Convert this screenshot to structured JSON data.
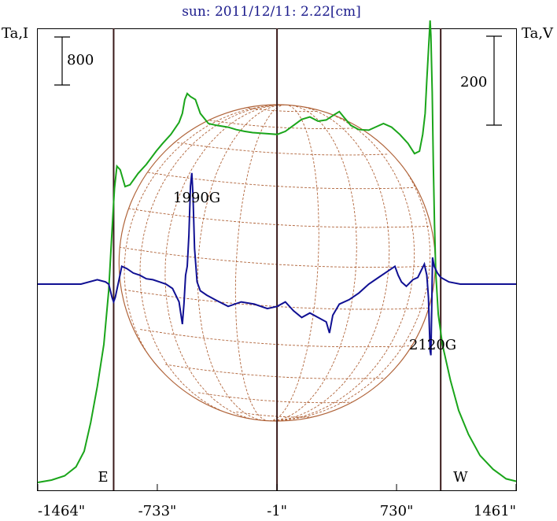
{
  "chart_data": {
    "type": "line",
    "title": "sun: 2011/12/11: 2.22[cm]",
    "ylabel_left": "Ta,I",
    "ylabel_right": "Ta,V",
    "xlim": [
      -1464,
      1461
    ],
    "x_ticks": [
      -1464,
      -733,
      -1,
      730,
      1461
    ],
    "x_tick_labels": [
      "-1464\"",
      "-733\"",
      "-1\"",
      "730\"",
      "1461\""
    ],
    "vertical_lines": [
      {
        "name": "east-limb",
        "x": -1000,
        "label": "E"
      },
      {
        "name": "center",
        "x": -1,
        "label": ""
      },
      {
        "name": "west-limb",
        "x": 1000,
        "label": "W"
      }
    ],
    "scale_left": {
      "label": "800",
      "value": 800
    },
    "scale_right": {
      "label": "200",
      "value": 200
    },
    "solar_disk": {
      "radius_arcsec": 975,
      "grid": "heliographic lat/lon"
    },
    "annotations": [
      {
        "text": "1990G",
        "x": -490
      },
      {
        "text": "2120G",
        "x": 985
      }
    ],
    "series": [
      {
        "name": "Stokes I",
        "color": "#1aa51a",
        "axis": "left",
        "points": [
          [
            -1464,
            0
          ],
          [
            -1380,
            40
          ],
          [
            -1300,
            110
          ],
          [
            -1230,
            260
          ],
          [
            -1180,
            520
          ],
          [
            -1140,
            1000
          ],
          [
            -1100,
            1600
          ],
          [
            -1060,
            2300
          ],
          [
            -1030,
            3200
          ],
          [
            -1010,
            4200
          ],
          [
            -995,
            4900
          ],
          [
            -980,
            5270
          ],
          [
            -960,
            5210
          ],
          [
            -930,
            4930
          ],
          [
            -900,
            4960
          ],
          [
            -850,
            5150
          ],
          [
            -800,
            5300
          ],
          [
            -740,
            5520
          ],
          [
            -700,
            5650
          ],
          [
            -650,
            5800
          ],
          [
            -600,
            6000
          ],
          [
            -580,
            6150
          ],
          [
            -565,
            6380
          ],
          [
            -550,
            6480
          ],
          [
            -530,
            6430
          ],
          [
            -500,
            6380
          ],
          [
            -470,
            6150
          ],
          [
            -420,
            5980
          ],
          [
            -370,
            5950
          ],
          [
            -300,
            5920
          ],
          [
            -250,
            5880
          ],
          [
            -200,
            5850
          ],
          [
            -150,
            5830
          ],
          [
            -100,
            5820
          ],
          [
            -50,
            5810
          ],
          [
            0,
            5800
          ],
          [
            50,
            5850
          ],
          [
            100,
            5950
          ],
          [
            150,
            6050
          ],
          [
            200,
            6090
          ],
          [
            250,
            6020
          ],
          [
            300,
            6040
          ],
          [
            350,
            6130
          ],
          [
            380,
            6180
          ],
          [
            410,
            6080
          ],
          [
            450,
            5950
          ],
          [
            500,
            5880
          ],
          [
            560,
            5870
          ],
          [
            600,
            5920
          ],
          [
            650,
            5980
          ],
          [
            700,
            5920
          ],
          [
            750,
            5800
          ],
          [
            800,
            5650
          ],
          [
            840,
            5480
          ],
          [
            870,
            5520
          ],
          [
            890,
            5800
          ],
          [
            905,
            6150
          ],
          [
            915,
            6700
          ],
          [
            925,
            7200
          ],
          [
            935,
            7700
          ],
          [
            940,
            7450
          ],
          [
            948,
            6500
          ],
          [
            955,
            5300
          ],
          [
            962,
            4300
          ],
          [
            970,
            3500
          ],
          [
            985,
            2800
          ],
          [
            1010,
            2300
          ],
          [
            1060,
            1700
          ],
          [
            1110,
            1200
          ],
          [
            1170,
            800
          ],
          [
            1240,
            450
          ],
          [
            1320,
            220
          ],
          [
            1400,
            60
          ],
          [
            1461,
            20
          ]
        ]
      },
      {
        "name": "Stokes V",
        "color": "#101093",
        "axis": "right",
        "points": [
          [
            -1464,
            0
          ],
          [
            -1400,
            0
          ],
          [
            -1300,
            0
          ],
          [
            -1200,
            0
          ],
          [
            -1100,
            10
          ],
          [
            -1050,
            5
          ],
          [
            -1030,
            0
          ],
          [
            -1010,
            -30
          ],
          [
            -1000,
            -40
          ],
          [
            -990,
            -30
          ],
          [
            -970,
            5
          ],
          [
            -950,
            40
          ],
          [
            -920,
            35
          ],
          [
            -880,
            25
          ],
          [
            -840,
            20
          ],
          [
            -800,
            12
          ],
          [
            -760,
            10
          ],
          [
            -720,
            5
          ],
          [
            -680,
            0
          ],
          [
            -640,
            -10
          ],
          [
            -600,
            -40
          ],
          [
            -590,
            -65
          ],
          [
            -580,
            -90
          ],
          [
            -570,
            -45
          ],
          [
            -560,
            20
          ],
          [
            -550,
            40
          ],
          [
            -540,
            110
          ],
          [
            -530,
            220
          ],
          [
            -522,
            250
          ],
          [
            -515,
            200
          ],
          [
            -505,
            80
          ],
          [
            -490,
            5
          ],
          [
            -470,
            -15
          ],
          [
            -430,
            -25
          ],
          [
            -380,
            -35
          ],
          [
            -300,
            -50
          ],
          [
            -220,
            -40
          ],
          [
            -140,
            -45
          ],
          [
            -60,
            -55
          ],
          [
            0,
            -50
          ],
          [
            50,
            -40
          ],
          [
            100,
            -60
          ],
          [
            150,
            -75
          ],
          [
            200,
            -65
          ],
          [
            250,
            -75
          ],
          [
            300,
            -85
          ],
          [
            320,
            -110
          ],
          [
            340,
            -70
          ],
          [
            380,
            -45
          ],
          [
            440,
            -35
          ],
          [
            500,
            -20
          ],
          [
            560,
            0
          ],
          [
            620,
            15
          ],
          [
            680,
            30
          ],
          [
            720,
            40
          ],
          [
            740,
            20
          ],
          [
            760,
            5
          ],
          [
            790,
            -5
          ],
          [
            830,
            10
          ],
          [
            860,
            15
          ],
          [
            880,
            30
          ],
          [
            900,
            45
          ],
          [
            915,
            20
          ],
          [
            925,
            -30
          ],
          [
            935,
            -150
          ],
          [
            940,
            -160
          ],
          [
            945,
            -60
          ],
          [
            950,
            60
          ],
          [
            960,
            40
          ],
          [
            980,
            25
          ],
          [
            1000,
            15
          ],
          [
            1050,
            5
          ],
          [
            1120,
            0
          ],
          [
            1200,
            0
          ],
          [
            1300,
            0
          ],
          [
            1461,
            0
          ]
        ]
      }
    ]
  }
}
